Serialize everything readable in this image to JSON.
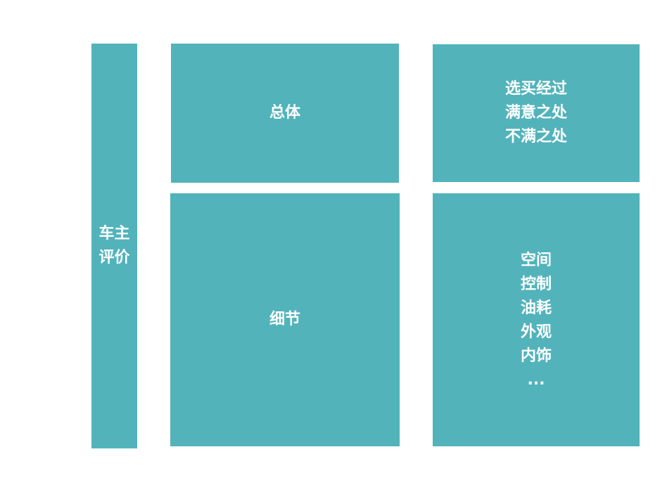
{
  "diagram": {
    "root": {
      "lines": [
        "车主",
        "评价"
      ]
    },
    "categories": [
      {
        "label": "总体",
        "items": [
          "选买经过",
          "满意之处",
          "不满之处"
        ]
      },
      {
        "label": "细节",
        "items": [
          "空间",
          "控制",
          "油耗",
          "外观",
          "内饰",
          "..."
        ]
      }
    ],
    "colors": {
      "box_fill": "#52b3bb",
      "text": "#ffffff",
      "background": "#ffffff"
    }
  }
}
